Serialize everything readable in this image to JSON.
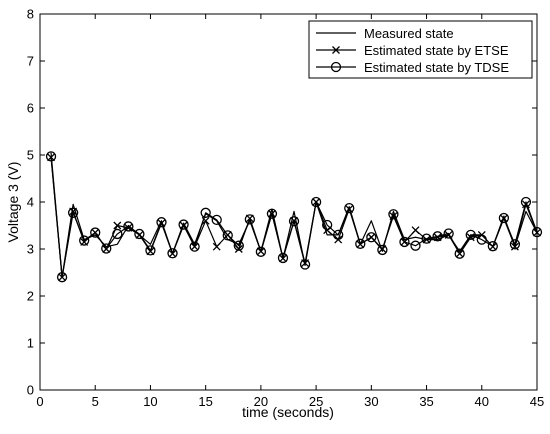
{
  "chart_data": {
    "type": "line",
    "xlabel": "time (seconds)",
    "ylabel": "Voltage 3 (V)",
    "xlim": [
      0,
      45
    ],
    "ylim": [
      0,
      8
    ],
    "xticks": [
      0,
      5,
      10,
      15,
      20,
      25,
      30,
      35,
      40,
      45
    ],
    "yticks": [
      0,
      1,
      2,
      3,
      4,
      5,
      6,
      7,
      8
    ],
    "grid": false,
    "legend_position": "top-right",
    "x": [
      1,
      2,
      3,
      4,
      5,
      6,
      7,
      8,
      9,
      10,
      11,
      12,
      13,
      14,
      15,
      16,
      17,
      18,
      19,
      20,
      21,
      22,
      23,
      24,
      25,
      26,
      27,
      28,
      29,
      30,
      31,
      32,
      33,
      34,
      35,
      36,
      37,
      38,
      39,
      40,
      41,
      42,
      43,
      44,
      45
    ],
    "series": [
      {
        "name": "Measured state",
        "marker": "none",
        "values": [
          5.05,
          2.4,
          3.95,
          3.2,
          3.3,
          3.05,
          3.1,
          3.5,
          3.3,
          3.1,
          3.6,
          2.9,
          3.55,
          3.1,
          3.75,
          3.6,
          3.2,
          3.1,
          3.6,
          2.95,
          3.85,
          2.8,
          3.8,
          2.65,
          4.0,
          3.3,
          3.3,
          3.9,
          3.1,
          3.6,
          2.95,
          3.8,
          3.2,
          3.25,
          3.2,
          3.2,
          3.3,
          2.95,
          3.3,
          3.3,
          3.05,
          3.7,
          3.05,
          3.8,
          3.35
        ]
      },
      {
        "name": "Estimated state by ETSE",
        "marker": "x",
        "values": [
          4.95,
          2.4,
          3.8,
          3.15,
          3.35,
          3.0,
          3.5,
          3.45,
          3.3,
          2.95,
          3.55,
          2.9,
          3.5,
          3.05,
          3.6,
          3.05,
          3.3,
          3.0,
          3.65,
          2.95,
          3.75,
          2.8,
          3.6,
          2.7,
          4.0,
          3.4,
          3.2,
          3.85,
          3.1,
          3.25,
          3.0,
          3.7,
          3.15,
          3.4,
          3.2,
          3.25,
          3.3,
          2.9,
          3.25,
          3.3,
          3.05,
          3.65,
          3.05,
          3.95,
          3.35
        ]
      },
      {
        "name": "Estimated state by TDSE",
        "marker": "o",
        "values": [
          4.97,
          2.4,
          3.77,
          3.18,
          3.35,
          3.01,
          3.32,
          3.48,
          3.32,
          2.97,
          3.57,
          2.91,
          3.52,
          3.05,
          3.77,
          3.62,
          3.29,
          3.07,
          3.63,
          2.94,
          3.75,
          2.81,
          3.59,
          2.67,
          4.0,
          3.51,
          3.3,
          3.87,
          3.11,
          3.25,
          2.98,
          3.74,
          3.15,
          3.07,
          3.22,
          3.27,
          3.33,
          2.9,
          3.3,
          3.2,
          3.06,
          3.66,
          3.1,
          4.0,
          3.36
        ]
      }
    ]
  }
}
